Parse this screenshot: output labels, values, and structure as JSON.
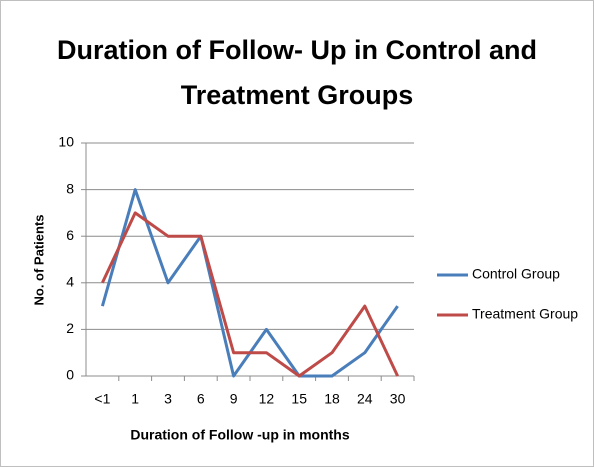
{
  "chart_data": {
    "type": "line",
    "title": [
      "Duration of Follow- Up in Control and",
      "Treatment Groups"
    ],
    "x_label": "Duration of Follow -up in months",
    "y_label": "No. of Patients",
    "categories": [
      "<1",
      "1",
      "3",
      "6",
      "9",
      "12",
      "15",
      "18",
      "24",
      "30"
    ],
    "series": [
      {
        "name": "Control Group",
        "color": "#4a7ebb",
        "values": [
          3,
          8,
          4,
          6,
          0,
          2,
          0,
          0,
          1,
          3
        ]
      },
      {
        "name": "Treatment Group",
        "color": "#be4b48",
        "values": [
          4,
          7,
          6,
          6,
          1,
          1,
          0,
          1,
          3,
          0
        ]
      }
    ],
    "ylim": [
      0,
      10
    ],
    "yticks": [
      0,
      2,
      4,
      6,
      8,
      10
    ],
    "grid": true,
    "legend": "right"
  }
}
